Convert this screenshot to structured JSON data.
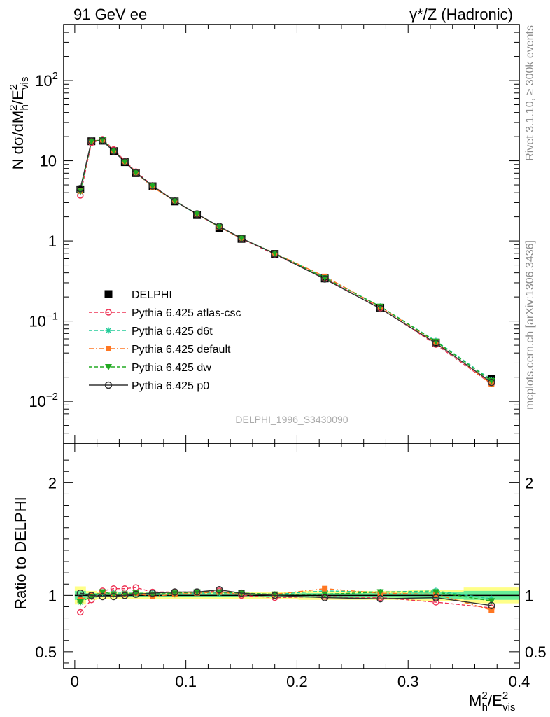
{
  "header": {
    "left_title": "91 GeV ee",
    "right_title": "γ*/Z (Hadronic)"
  },
  "side_text": {
    "rivet": "Rivet 3.1.10, ≥ 300k events",
    "mcplots": "mcplots.cern.ch [arXiv:1306.3436]"
  },
  "watermark": "DELPHI_1996_S3430090",
  "colors": {
    "data": "#000000",
    "atlas_csc": "#ee3355",
    "d6t": "#22cc99",
    "default": "#ff7722",
    "dw": "#22aa22",
    "p0": "#333333",
    "band_yellow": "#ffff88",
    "band_green": "#66ee99"
  },
  "chart_data": [
    {
      "type": "line",
      "panel": "main",
      "ylabel": "N dσ/dM²h/E²vis",
      "yscale": "log",
      "ylim": [
        0.003,
        500
      ],
      "xlim": [
        -0.01,
        0.4
      ],
      "y_ticks": [
        "10^-2",
        "10^-1",
        "1",
        "10",
        "10^2"
      ],
      "x": [
        0.005,
        0.015,
        0.025,
        0.035,
        0.045,
        0.055,
        0.07,
        0.09,
        0.11,
        0.13,
        0.15,
        0.18,
        0.225,
        0.275,
        0.325,
        0.375
      ],
      "data": {
        "name": "DELPHI",
        "values": [
          4.4,
          17.5,
          17.8,
          13.2,
          9.6,
          7.0,
          4.8,
          3.1,
          2.1,
          1.45,
          1.06,
          0.69,
          0.34,
          0.147,
          0.054,
          0.019
        ]
      },
      "series": [
        {
          "key": "atlas_csc",
          "name": "Pythia 6.425 atlas-csc",
          "values": [
            3.7,
            16.8,
            18.5,
            13.8,
            10.0,
            7.3,
            4.9,
            3.15,
            2.15,
            1.5,
            1.06,
            0.68,
            0.34,
            0.145,
            0.051,
            0.0165
          ]
        },
        {
          "key": "d6t",
          "name": "Pythia 6.425 d6t",
          "values": [
            4.1,
            17.3,
            18.2,
            13.4,
            9.8,
            7.1,
            4.85,
            3.12,
            2.15,
            1.5,
            1.08,
            0.7,
            0.355,
            0.152,
            0.0565,
            0.0185
          ]
        },
        {
          "key": "default",
          "name": "Pythia 6.425 default",
          "values": [
            4.2,
            17.6,
            18.3,
            13.3,
            9.7,
            7.1,
            4.7,
            3.13,
            2.15,
            1.49,
            1.07,
            0.7,
            0.36,
            0.15,
            0.0545,
            0.0165
          ]
        },
        {
          "key": "dw",
          "name": "Pythia 6.425 dw",
          "values": [
            4.15,
            17.4,
            18.3,
            13.3,
            9.7,
            7.1,
            4.85,
            3.15,
            2.17,
            1.5,
            1.08,
            0.7,
            0.345,
            0.152,
            0.0555,
            0.018
          ]
        },
        {
          "key": "p0",
          "name": "Pythia 6.425 p0",
          "values": [
            4.5,
            17.6,
            17.7,
            13.2,
            9.7,
            7.1,
            4.85,
            3.14,
            2.17,
            1.52,
            1.08,
            0.69,
            0.335,
            0.143,
            0.053,
            0.0172
          ]
        }
      ],
      "legend": [
        "DELPHI",
        "Pythia 6.425 atlas-csc",
        "Pythia 6.425 d6t",
        "Pythia 6.425 default",
        "Pythia 6.425 dw",
        "Pythia 6.425 p0"
      ]
    },
    {
      "type": "line",
      "panel": "ratio",
      "ylabel": "Ratio to DELPHI",
      "xlabel": "M²h/E²vis",
      "ylim": [
        0.35,
        2.35
      ],
      "xlim": [
        -0.01,
        0.4
      ],
      "y_ticks": [
        0.5,
        1,
        2
      ],
      "x_ticks": [
        0,
        0.1,
        0.2,
        0.3,
        0.4
      ],
      "x": [
        0.005,
        0.015,
        0.025,
        0.035,
        0.045,
        0.055,
        0.07,
        0.09,
        0.11,
        0.13,
        0.15,
        0.18,
        0.225,
        0.275,
        0.325,
        0.375
      ],
      "band_yellow": [
        0.08,
        0.04,
        0.03,
        0.03,
        0.03,
        0.03,
        0.03,
        0.03,
        0.03,
        0.03,
        0.03,
        0.03,
        0.04,
        0.04,
        0.05,
        0.07
      ],
      "band_green": [
        0.04,
        0.02,
        0.015,
        0.015,
        0.015,
        0.015,
        0.015,
        0.015,
        0.015,
        0.015,
        0.015,
        0.015,
        0.02,
        0.02,
        0.03,
        0.04
      ],
      "series": [
        {
          "key": "atlas_csc",
          "values": [
            0.85,
            0.96,
            1.04,
            1.06,
            1.06,
            1.07,
            1.03,
            1.03,
            1.03,
            1.04,
            1.0,
            0.98,
            0.99,
            0.98,
            0.94,
            0.89
          ]
        },
        {
          "key": "d6t",
          "values": [
            0.94,
            0.99,
            1.02,
            1.02,
            1.02,
            1.02,
            1.02,
            1.01,
            1.02,
            1.02,
            1.02,
            1.01,
            1.04,
            1.03,
            1.04,
            0.97
          ]
        },
        {
          "key": "default",
          "values": [
            0.96,
            1.0,
            1.03,
            1.01,
            1.01,
            1.02,
            0.99,
            1.01,
            1.02,
            1.03,
            1.01,
            1.01,
            1.06,
            1.02,
            1.01,
            0.87
          ]
        },
        {
          "key": "dw",
          "values": [
            0.94,
            0.99,
            1.03,
            1.01,
            1.01,
            1.02,
            1.01,
            1.02,
            1.03,
            1.03,
            1.02,
            1.01,
            1.01,
            1.03,
            1.03,
            0.95
          ]
        },
        {
          "key": "p0",
          "values": [
            1.02,
            1.0,
            0.99,
            0.99,
            1.0,
            1.01,
            1.02,
            1.03,
            1.03,
            1.05,
            1.02,
            1.0,
            0.98,
            0.97,
            0.98,
            0.91
          ]
        }
      ]
    }
  ]
}
